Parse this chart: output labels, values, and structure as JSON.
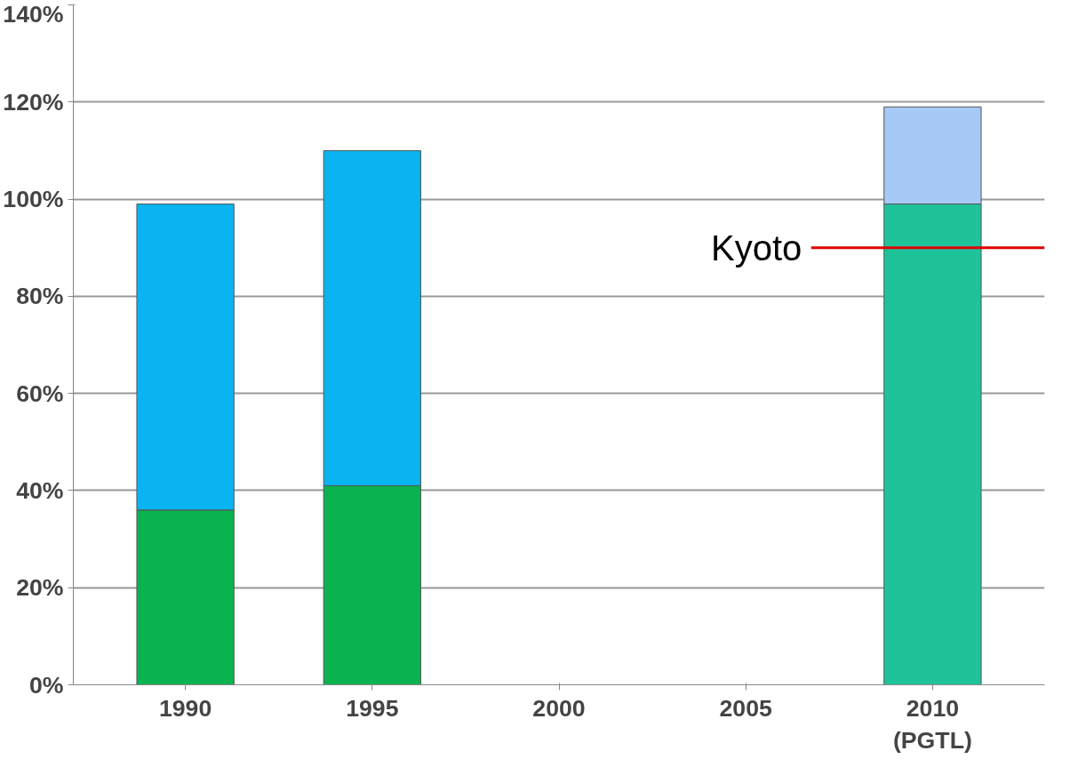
{
  "chart_data": {
    "type": "bar",
    "stacked": true,
    "categories": [
      "1990",
      "1995",
      "2000",
      "2005",
      "2010\n(PGTL)"
    ],
    "series": [
      {
        "colors": [
          "#0ab350",
          "#0ab350",
          "#0ab350",
          "#0ab350",
          "#1fc39a"
        ],
        "values": [
          36,
          41,
          null,
          null,
          99
        ]
      },
      {
        "color": "#0ab4f0",
        "values": [
          63,
          69,
          null,
          null,
          null
        ]
      },
      {
        "color": "#a7c9f5",
        "values": [
          null,
          null,
          null,
          null,
          20
        ]
      }
    ],
    "ylim": [
      0,
      140
    ],
    "yticks": [
      {
        "value": 0,
        "label": "0%"
      },
      {
        "value": 20,
        "label": "20%"
      },
      {
        "value": 40,
        "label": "40%"
      },
      {
        "value": 60,
        "label": "60%"
      },
      {
        "value": 80,
        "label": "80%"
      },
      {
        "value": 100,
        "label": "100%"
      },
      {
        "value": 120,
        "label": "120%"
      },
      {
        "value": 140,
        "label": "140%"
      }
    ],
    "grid": "y",
    "ref_lines": [
      {
        "axis": "y",
        "value": 90,
        "label": "Kyoto",
        "color": "#e00000"
      }
    ]
  }
}
